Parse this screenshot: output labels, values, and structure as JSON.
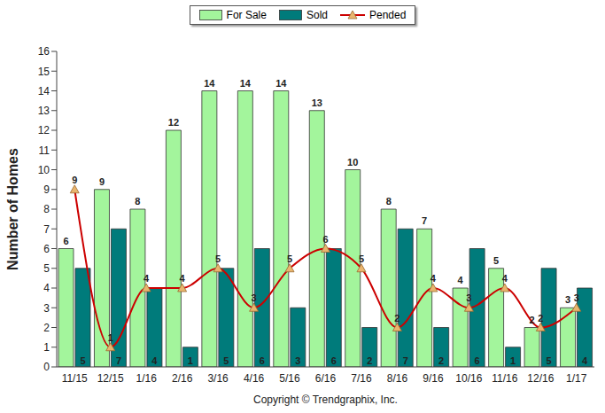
{
  "chart_data": {
    "type": "bar",
    "y_label": "Number of Homes",
    "annotations": [
      "Copyright © Trendgraphix, Inc."
    ],
    "categories": [
      "11/15",
      "12/15",
      "1/16",
      "2/16",
      "3/16",
      "4/16",
      "5/16",
      "6/16",
      "7/16",
      "8/16",
      "9/16",
      "10/16",
      "11/16",
      "12/16",
      "1/17"
    ],
    "series": [
      {
        "name": "For Sale",
        "type": "bar",
        "color": "#a3f59c",
        "values": [
          6,
          9,
          8,
          12,
          14,
          14,
          14,
          13,
          10,
          8,
          7,
          4,
          5,
          2,
          3
        ]
      },
      {
        "name": "Sold",
        "type": "bar",
        "color": "#007b7b",
        "values": [
          5,
          7,
          4,
          1,
          5,
          6,
          3,
          6,
          2,
          7,
          2,
          6,
          1,
          5,
          4
        ]
      },
      {
        "name": "Pended",
        "type": "line",
        "color": "#cc0000",
        "marker": "triangle",
        "line_style": "solid",
        "values": [
          9,
          1,
          4,
          4,
          5,
          3,
          5,
          6,
          5,
          2,
          4,
          3,
          4,
          2,
          3
        ]
      }
    ],
    "ylim": [
      0,
      16
    ],
    "yticks": [
      0,
      1,
      2,
      3,
      4,
      5,
      6,
      7,
      8,
      9,
      10,
      11,
      12,
      13,
      14,
      15,
      16
    ],
    "grid": false,
    "legend": "top",
    "data_labels": true
  }
}
